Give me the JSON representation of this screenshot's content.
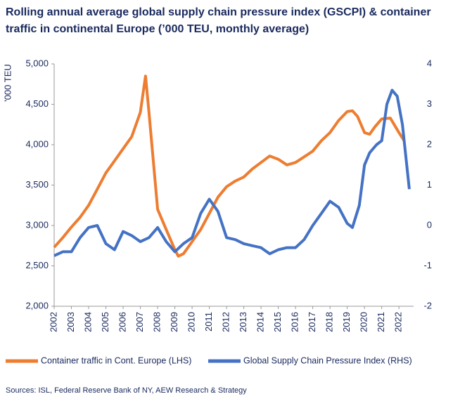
{
  "chart_data": {
    "type": "line",
    "title": "Rolling annual average global supply chain pressure index (GSCPI) & container traffic in continental Europe (’000 TEU, monthly average)",
    "ylabel": "'000 TEU",
    "source": "Sources: ISL, Federal Reserve Bank of NY, AEW Research & Strategy",
    "xlim": [
      2002,
      2022.85
    ],
    "xticks": [
      2002,
      2003,
      2004,
      2005,
      2006,
      2007,
      2008,
      2009,
      2010,
      2011,
      2012,
      2013,
      2014,
      2015,
      2016,
      2017,
      2018,
      2019,
      2020,
      2021,
      2022
    ],
    "ylim": [
      2000,
      5000
    ],
    "yticks": [
      {
        "value": 2000,
        "label": "2,000"
      },
      {
        "value": 2500,
        "label": "2,500"
      },
      {
        "value": 3000,
        "label": "3,000"
      },
      {
        "value": 3500,
        "label": "3,500"
      },
      {
        "value": 4000,
        "label": "4,000"
      },
      {
        "value": 4500,
        "label": "4,500"
      },
      {
        "value": 5000,
        "label": "5,000"
      }
    ],
    "y2lim": [
      -2,
      4
    ],
    "y2ticks": [
      -2,
      -1,
      0,
      1,
      2,
      3,
      4
    ],
    "legend": "bottom",
    "series": [
      {
        "name": "Container traffic in Cont. Europe (LHS)",
        "color": "#ed7d31",
        "axis": "y",
        "x": [
          2002,
          2002.5,
          2003,
          2003.5,
          2004,
          2004.5,
          2005,
          2005.5,
          2006,
          2006.5,
          2007,
          2007.3,
          2007.5,
          2008,
          2008.5,
          2009,
          2009.2,
          2009.5,
          2010,
          2010.5,
          2011,
          2011.5,
          2012,
          2012.5,
          2013,
          2013.5,
          2014,
          2014.5,
          2015,
          2015.5,
          2016,
          2016.5,
          2017,
          2017.5,
          2018,
          2018.5,
          2019,
          2019.3,
          2019.6,
          2020,
          2020.3,
          2020.6,
          2021,
          2021.5,
          2022,
          2022.3
        ],
        "values": [
          2730,
          2850,
          2980,
          3100,
          3250,
          3450,
          3650,
          3800,
          3950,
          4100,
          4400,
          4850,
          4400,
          3200,
          2950,
          2700,
          2620,
          2650,
          2800,
          2950,
          3150,
          3350,
          3480,
          3550,
          3600,
          3700,
          3780,
          3860,
          3820,
          3750,
          3780,
          3850,
          3920,
          4050,
          4150,
          4300,
          4410,
          4420,
          4350,
          4150,
          4130,
          4220,
          4320,
          4330,
          4150,
          4050
        ]
      },
      {
        "name": "Global Supply Chain Pressure Index (RHS)",
        "color": "#4472c4",
        "axis": "y2",
        "x": [
          2002,
          2002.5,
          2003,
          2003.5,
          2004,
          2004.5,
          2005,
          2005.5,
          2006,
          2006.5,
          2007,
          2007.5,
          2008,
          2008.5,
          2009,
          2009.5,
          2010,
          2010.5,
          2011,
          2011.5,
          2012,
          2012.5,
          2013,
          2013.5,
          2014,
          2014.5,
          2015,
          2015.5,
          2016,
          2016.5,
          2017,
          2017.5,
          2018,
          2018.5,
          2019,
          2019.3,
          2019.7,
          2020,
          2020.3,
          2020.7,
          2021,
          2021.3,
          2021.6,
          2021.9,
          2022.2,
          2022.6
        ],
        "values": [
          -0.75,
          -0.65,
          -0.65,
          -0.3,
          -0.05,
          0.0,
          -0.45,
          -0.6,
          -0.15,
          -0.25,
          -0.4,
          -0.3,
          -0.05,
          -0.4,
          -0.65,
          -0.45,
          -0.3,
          0.3,
          0.65,
          0.35,
          -0.3,
          -0.35,
          -0.45,
          -0.5,
          -0.55,
          -0.7,
          -0.6,
          -0.55,
          -0.55,
          -0.35,
          0,
          0.3,
          0.6,
          0.45,
          0.05,
          -0.05,
          0.5,
          1.5,
          1.8,
          2.0,
          2.1,
          3.0,
          3.35,
          3.2,
          2.5,
          0.9
        ]
      }
    ]
  }
}
